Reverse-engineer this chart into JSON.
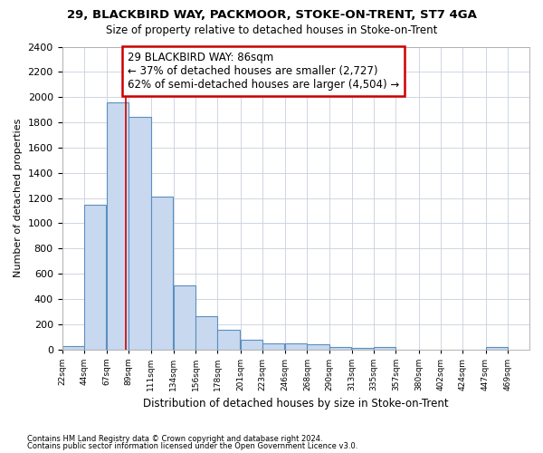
{
  "title1": "29, BLACKBIRD WAY, PACKMOOR, STOKE-ON-TRENT, ST7 4GA",
  "title2": "Size of property relative to detached houses in Stoke-on-Trent",
  "xlabel": "Distribution of detached houses by size in Stoke-on-Trent",
  "ylabel": "Number of detached properties",
  "bar_left_edges": [
    22,
    44,
    67,
    89,
    111,
    134,
    156,
    178,
    201,
    223,
    246,
    268,
    290,
    313,
    335,
    357,
    380,
    402,
    424,
    447
  ],
  "bar_heights": [
    30,
    1150,
    1960,
    1840,
    1210,
    510,
    265,
    155,
    80,
    50,
    45,
    40,
    20,
    15,
    20,
    0,
    0,
    0,
    0,
    20
  ],
  "bin_width": 22,
  "bar_facecolor": "#c8d9ef",
  "bar_edgecolor": "#5a8fc0",
  "tick_labels": [
    "22sqm",
    "44sqm",
    "67sqm",
    "89sqm",
    "111sqm",
    "134sqm",
    "156sqm",
    "178sqm",
    "201sqm",
    "223sqm",
    "246sqm",
    "268sqm",
    "290sqm",
    "313sqm",
    "335sqm",
    "357sqm",
    "380sqm",
    "402sqm",
    "424sqm",
    "447sqm",
    "469sqm"
  ],
  "vline_x": 86,
  "vline_color": "#cc0000",
  "ylim": [
    0,
    2400
  ],
  "yticks": [
    0,
    200,
    400,
    600,
    800,
    1000,
    1200,
    1400,
    1600,
    1800,
    2000,
    2200,
    2400
  ],
  "annotation_line1": "29 BLACKBIRD WAY: 86sqm",
  "annotation_line2": "← 37% of detached houses are smaller (2,727)",
  "annotation_line3": "62% of semi-detached houses are larger (4,504) →",
  "annotation_box_color": "#cc0000",
  "footnote1": "Contains HM Land Registry data © Crown copyright and database right 2024.",
  "footnote2": "Contains public sector information licensed under the Open Government Licence v3.0.",
  "background_color": "#ffffff",
  "grid_color": "#c8d0dc"
}
